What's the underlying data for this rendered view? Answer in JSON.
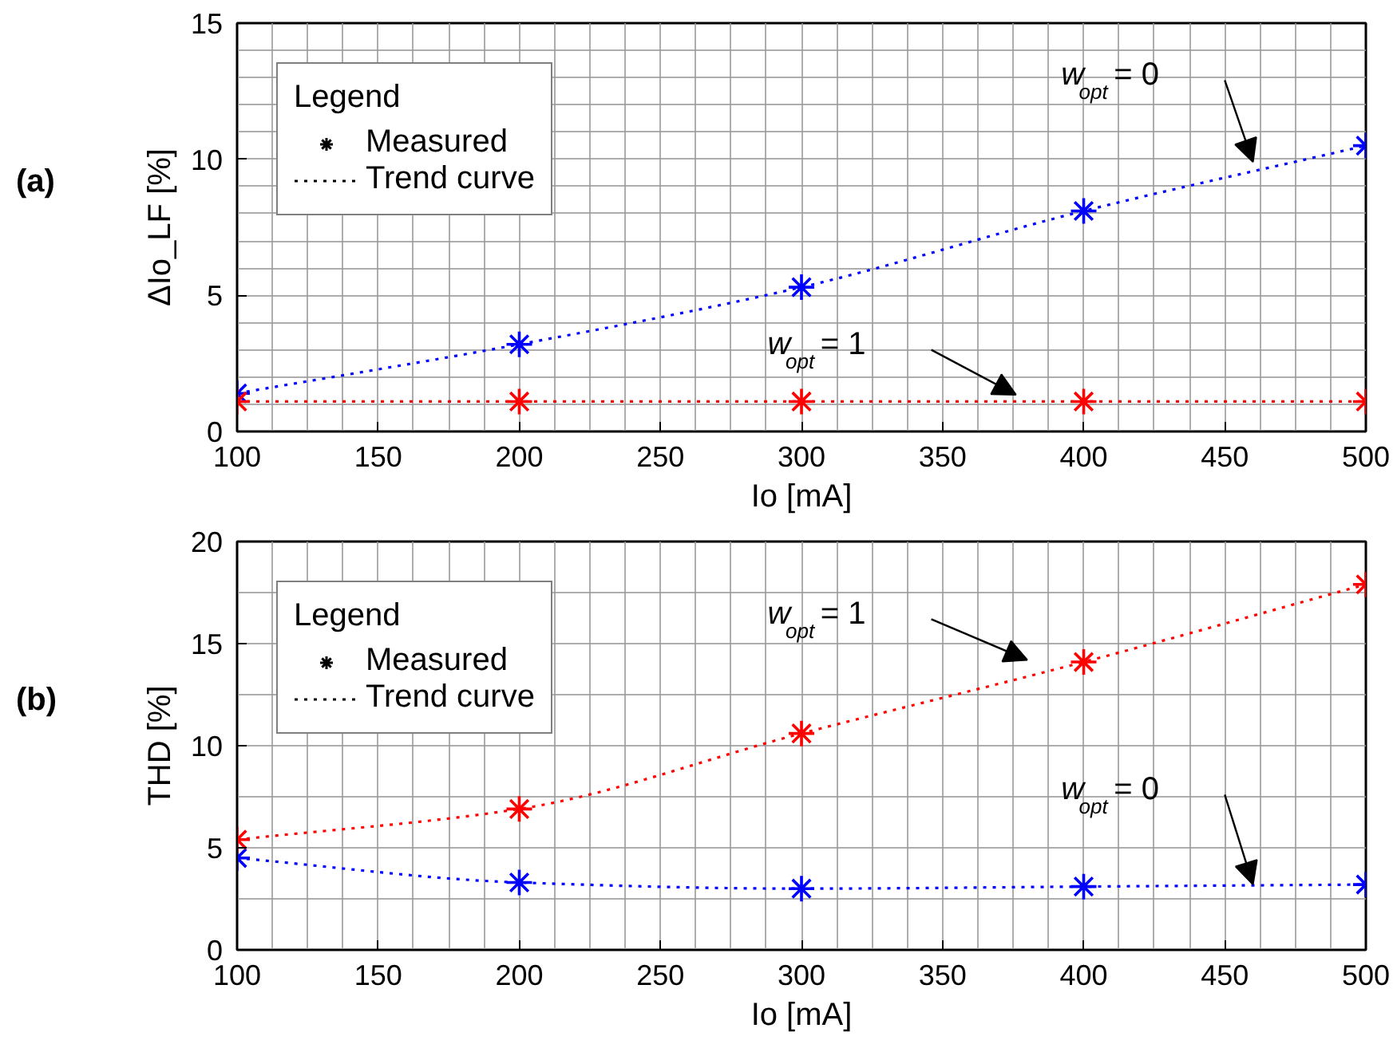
{
  "chart_data": [
    {
      "type": "scatter",
      "title": "(a)",
      "xlabel": "Io [mA]",
      "ylabel": "ΔIo_LF [%]",
      "legend_title": "Legend",
      "grid": true,
      "marker": "cross",
      "x": [
        100,
        200,
        300,
        400,
        500
      ],
      "xlim": [
        100,
        500
      ],
      "xticks": [
        100,
        150,
        200,
        250,
        300,
        350,
        400,
        450,
        500
      ],
      "ylim": [
        0,
        15
      ],
      "yticks": [
        0,
        5,
        10,
        15
      ],
      "series": [
        {
          "color": "#0000ff",
          "values": [
            1.4,
            3.2,
            5.3,
            8.1,
            10.5
          ]
        },
        {
          "color": "#ff0000",
          "values": [
            1.1,
            1.1,
            1.1,
            1.1,
            1.1
          ]
        },
        {
          "type": "line",
          "marker": "none",
          "line_style": "dotted",
          "color": "#0000ff",
          "values": [
            1.4,
            3.2,
            5.3,
            8.1,
            10.5
          ]
        },
        {
          "type": "line",
          "marker": "none",
          "line_style": "dotted",
          "color": "#ff0000",
          "values": [
            1.1,
            1.1,
            1.1,
            1.1,
            1.1
          ]
        }
      ],
      "annotations": [
        "Measured",
        "Trend curve",
        "w$_{opt}$ = 0",
        "w$_{opt}$ = 1"
      ]
    },
    {
      "type": "scatter",
      "title": "(b)",
      "xlabel": "Io [mA]",
      "ylabel": "THD [%]",
      "legend_title": "Legend",
      "grid": true,
      "marker": "cross",
      "x": [
        100,
        200,
        300,
        400,
        500
      ],
      "xlim": [
        100,
        500
      ],
      "xticks": [
        100,
        150,
        200,
        250,
        300,
        350,
        400,
        450,
        500
      ],
      "ylim": [
        0,
        20
      ],
      "yticks": [
        0,
        5,
        10,
        15,
        20
      ],
      "series": [
        {
          "color": "#0000ff",
          "values": [
            4.5,
            3.3,
            3.0,
            3.1,
            3.2
          ]
        },
        {
          "color": "#ff0000",
          "values": [
            5.4,
            6.9,
            10.6,
            14.1,
            17.9
          ]
        },
        {
          "type": "line",
          "marker": "none",
          "line_style": "dotted",
          "color": "#0000ff",
          "values": [
            4.5,
            3.3,
            3.0,
            3.1,
            3.2
          ]
        },
        {
          "type": "line",
          "marker": "none",
          "line_style": "dotted",
          "color": "#ff0000",
          "values": [
            5.4,
            6.9,
            10.6,
            14.1,
            17.9
          ]
        }
      ],
      "annotations": [
        "Measured",
        "Trend curve",
        "w$_{opt}$ = 1",
        "w$_{opt}$ = 0"
      ]
    }
  ]
}
